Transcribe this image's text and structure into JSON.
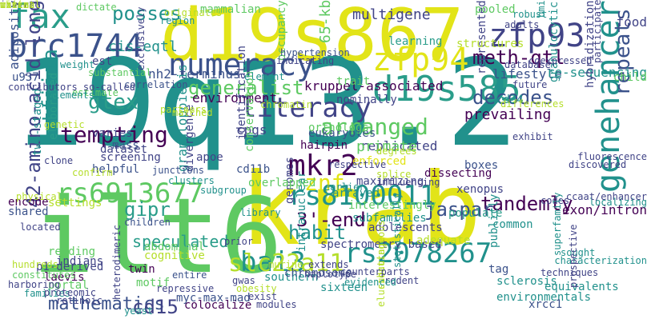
{
  "palette": {
    "yellow": "#e2e418",
    "lime": "#b5de2b",
    "green": "#5ec962",
    "teal": "#21918c",
    "seagreen": "#2a9d8a",
    "blue": "#3b528b",
    "indigo": "#414487",
    "purple": "#440154",
    "aqua": "#35b779"
  },
  "words": [
    {
      "text": "19q13.2",
      "color": "teal",
      "vertical": false
    },
    {
      "text": "krab",
      "color": "yellow",
      "vertical": false
    },
    {
      "text": "ilt6",
      "color": "green",
      "vertical": false
    },
    {
      "text": "d19s867",
      "color": "yellow",
      "vertical": false
    },
    {
      "text": "brc1744",
      "color": "blue",
      "vertical": false
    },
    {
      "text": "fax",
      "color": "seagreen",
      "vertical": false
    },
    {
      "text": "zfp93",
      "color": "indigo",
      "vertical": false
    },
    {
      "text": "posses",
      "color": "teal",
      "vertical": false
    },
    {
      "text": "numeracy",
      "color": "blue",
      "vertical": false
    },
    {
      "text": "d19s585",
      "color": "seagreen",
      "vertical": false
    },
    {
      "text": "zfp94",
      "color": "yellow",
      "vertical": false
    },
    {
      "text": "literacy",
      "color": "indigo",
      "vertical": false
    },
    {
      "text": "mkr2",
      "color": "purple",
      "vertical": false
    },
    {
      "text": "rs6913677",
      "color": "green",
      "vertical": false
    },
    {
      "text": "rs8100011",
      "color": "teal",
      "vertical": false
    },
    {
      "text": "genehancer",
      "color": "teal",
      "vertical": true
    },
    {
      "text": "tempting",
      "color": "purple",
      "vertical": false
    },
    {
      "text": "tandemly",
      "color": "purple",
      "vertical": false
    },
    {
      "text": "jaspar",
      "color": "blue",
      "vertical": false
    },
    {
      "text": "repeats",
      "color": "blue",
      "vertical": true
    },
    {
      "text": "bai3",
      "color": "teal",
      "vertical": false
    },
    {
      "text": "rs2078267",
      "color": "teal",
      "vertical": false
    },
    {
      "text": "slc22a11",
      "color": "lime",
      "vertical": false
    },
    {
      "text": "habit",
      "color": "teal",
      "vertical": false
    },
    {
      "text": "3'-end",
      "color": "purple",
      "vertical": false
    },
    {
      "text": "mathematics",
      "color": "blue",
      "vertical": false
    },
    {
      "text": "cd15",
      "color": "indigo",
      "vertical": false
    },
    {
      "text": "gipr",
      "color": "seagreen",
      "vertical": false
    },
    {
      "text": "speculated",
      "color": "seagreen",
      "vertical": false
    },
    {
      "text": "42-amino-acid-long",
      "color": "indigo",
      "vertical": true
    },
    {
      "text": "gtex",
      "color": "seagreen",
      "vertical": false
    },
    {
      "text": "tfiiia",
      "color": "teal",
      "vertical": true
    },
    {
      "text": "generalist",
      "color": "green",
      "vertical": false
    },
    {
      "text": "decodes",
      "color": "blue",
      "vertical": false
    },
    {
      "text": "arranged",
      "color": "green",
      "vertical": false
    },
    {
      "text": "meth-qtl",
      "color": "purple",
      "vertical": false
    },
    {
      "text": "cis-eqtl",
      "color": "teal",
      "vertical": false
    },
    {
      "text": "nh2-terminus",
      "color": "blue",
      "vertical": false
    },
    {
      "text": "kruppel-associated",
      "color": "purple",
      "vertical": false
    },
    {
      "text": "lifestyle",
      "color": "blue",
      "vertical": false
    },
    {
      "text": "re-sequencing",
      "color": "teal",
      "vertical": false
    },
    {
      "text": "multigene",
      "color": "indigo",
      "vertical": false
    },
    {
      "text": "65-kb",
      "color": "green",
      "vertical": true
    },
    {
      "text": "environment",
      "color": "purple",
      "vertical": false
    },
    {
      "text": "prevailing",
      "color": "purple",
      "vertical": false
    },
    {
      "text": "replicated",
      "color": "indigo",
      "vertical": false
    },
    {
      "text": "znf",
      "color": "yellow",
      "vertical": false
    },
    {
      "text": "primate",
      "color": "green",
      "vertical": false
    },
    {
      "text": "cpgs",
      "color": "indigo",
      "vertical": false
    },
    {
      "text": "eukaryotes",
      "color": "blue",
      "vertical": false
    },
    {
      "text": "orthologs",
      "color": "green",
      "vertical": false
    },
    {
      "text": "dissecting",
      "color": "purple",
      "vertical": false
    },
    {
      "text": "helpful",
      "color": "blue",
      "vertical": false
    },
    {
      "text": "mass",
      "color": "blue",
      "vertical": false
    },
    {
      "text": "dataset",
      "color": "indigo",
      "vertical": false
    },
    {
      "text": "screening",
      "color": "indigo",
      "vertical": false
    },
    {
      "text": "elaborated",
      "color": "seagreen",
      "vertical": true
    },
    {
      "text": "two-staged",
      "color": "teal",
      "vertical": true
    },
    {
      "text": "adiposity",
      "color": "blue",
      "vertical": true
    },
    {
      "text": "u937",
      "color": "blue",
      "vertical": false
    },
    {
      "text": "est",
      "color": "indigo",
      "vertical": false
    },
    {
      "text": "varies",
      "color": "indigo",
      "vertical": false
    },
    {
      "text": "settings",
      "color": "lime",
      "vertical": false
    },
    {
      "text": "encode",
      "color": "purple",
      "vertical": false
    },
    {
      "text": "shared",
      "color": "blue",
      "vertical": false
    },
    {
      "text": "reading",
      "color": "green",
      "vertical": false
    },
    {
      "text": "indians",
      "color": "indigo",
      "vertical": false
    },
    {
      "text": "laevis",
      "color": "purple",
      "vertical": false
    },
    {
      "text": "portal",
      "color": "green",
      "vertical": false
    },
    {
      "text": "p1-derived",
      "color": "indigo",
      "vertical": false
    },
    {
      "text": "twin",
      "color": "purple",
      "vertical": false
    },
    {
      "text": "abdominal",
      "color": "green",
      "vertical": false
    },
    {
      "text": "cognitive",
      "color": "lime",
      "vertical": false
    },
    {
      "text": "motif",
      "color": "green",
      "vertical": false
    },
    {
      "text": "granulopoiesis",
      "color": "teal",
      "vertical": true
    },
    {
      "text": "myc-max-mad",
      "color": "blue",
      "vertical": false
    },
    {
      "text": "colocalize",
      "color": "purple",
      "vertical": false
    },
    {
      "text": "genomes",
      "color": "indigo",
      "vertical": true
    },
    {
      "text": "intranuclear",
      "color": "teal",
      "vertical": true
    },
    {
      "text": "southern",
      "color": "teal",
      "vertical": false
    },
    {
      "text": "chromosome",
      "color": "blue",
      "vertical": false
    },
    {
      "text": "sixteen",
      "color": "teal",
      "vertical": false
    },
    {
      "text": "spectrometry-based",
      "color": "indigo",
      "vertical": false
    },
    {
      "text": "subfamilies",
      "color": "teal",
      "vertical": false
    },
    {
      "text": "interestingly",
      "color": "green",
      "vertical": false
    },
    {
      "text": "adolescents",
      "color": "indigo",
      "vertical": false
    },
    {
      "text": "adequate",
      "color": "lime",
      "vertical": false
    },
    {
      "text": "populate",
      "color": "seagreen",
      "vertical": false
    },
    {
      "text": "publicly",
      "color": "teal",
      "vertical": true
    },
    {
      "text": "tag",
      "color": "blue",
      "vertical": false
    },
    {
      "text": "common",
      "color": "teal",
      "vertical": false
    },
    {
      "text": "environmentals",
      "color": "teal",
      "vertical": false
    },
    {
      "text": "equivalents",
      "color": "teal",
      "vertical": false
    },
    {
      "text": "xrcc1",
      "color": "blue",
      "vertical": false
    },
    {
      "text": "sclerosis",
      "color": "teal",
      "vertical": false
    },
    {
      "text": "exon/intron",
      "color": "purple",
      "vertical": false
    },
    {
      "text": "cd34",
      "color": "teal",
      "vertical": false
    },
    {
      "text": "granulocytic",
      "color": "teal",
      "vertical": true
    },
    {
      "text": "food",
      "color": "indigo",
      "vertical": false
    },
    {
      "text": "child",
      "color": "green",
      "vertical": false
    },
    {
      "text": "hybridization",
      "color": "indigo",
      "vertical": true
    },
    {
      "text": "represented",
      "color": "indigo",
      "vertical": true
    },
    {
      "text": "pooled",
      "color": "green",
      "vertical": false
    },
    {
      "text": "structures",
      "color": "lime",
      "vertical": false
    },
    {
      "text": "nominally",
      "color": "indigo",
      "vertical": false
    },
    {
      "text": "trait",
      "color": "green",
      "vertical": false
    },
    {
      "text": "learning",
      "color": "seagreen",
      "vertical": false
    },
    {
      "text": "mammalian",
      "color": "green",
      "vertical": false
    },
    {
      "text": "occupancy",
      "color": "green",
      "vertical": true
    },
    {
      "text": "divergence",
      "color": "indigo",
      "vertical": true
    },
    {
      "text": "apoe",
      "color": "indigo",
      "vertical": false
    },
    {
      "text": "identification",
      "color": "indigo",
      "vertical": true
    },
    {
      "text": "conservation",
      "color": "green",
      "vertical": true
    },
    {
      "text": "cd11b",
      "color": "blue",
      "vertical": false
    },
    {
      "text": "hairpin",
      "color": "purple",
      "vertical": false
    },
    {
      "text": "overlapped",
      "color": "green",
      "vertical": false
    },
    {
      "text": "arrayed",
      "color": "teal",
      "vertical": false
    },
    {
      "text": "maximizing",
      "color": "indigo",
      "vertical": false
    },
    {
      "text": "enforced",
      "color": "yellow",
      "vertical": false
    },
    {
      "text": "boxes",
      "color": "blue",
      "vertical": false
    },
    {
      "text": "xenopus",
      "color": "indigo",
      "vertical": false
    },
    {
      "text": "dictate",
      "color": "green",
      "vertical": false
    },
    {
      "text": "estimate",
      "color": "green",
      "vertical": false
    },
    {
      "text": "contributors so-called",
      "color": "indigo",
      "vertical": false
    },
    {
      "text": "elements",
      "color": "teal",
      "vertical": false
    },
    {
      "text": "clone",
      "color": "indigo",
      "vertical": false
    },
    {
      "text": "confirm",
      "color": "lime",
      "vertical": false
    },
    {
      "text": "junctions",
      "color": "blue",
      "vertical": false
    },
    {
      "text": "clusters",
      "color": "teal",
      "vertical": false
    },
    {
      "text": "children",
      "color": "blue",
      "vertical": false
    },
    {
      "text": "harboring",
      "color": "indigo",
      "vertical": false
    },
    {
      "text": "families",
      "color": "teal",
      "vertical": false
    },
    {
      "text": "proteomic",
      "color": "indigo",
      "vertical": false
    },
    {
      "text": "retinoic",
      "color": "indigo",
      "vertical": false
    },
    {
      "text": "hundreds",
      "color": "lime",
      "vertical": false
    },
    {
      "text": "constitutes",
      "color": "green",
      "vertical": false
    },
    {
      "text": "located",
      "color": "indigo",
      "vertical": false
    },
    {
      "text": "physical",
      "color": "lime",
      "vertical": false
    },
    {
      "text": "entire",
      "color": "blue",
      "vertical": false
    },
    {
      "text": "repressive",
      "color": "indigo",
      "vertical": false
    },
    {
      "text": "heterodimeric",
      "color": "indigo",
      "vertical": true
    },
    {
      "text": "yeast",
      "color": "teal",
      "vertical": false
    },
    {
      "text": "subgroup",
      "color": "teal",
      "vertical": false
    },
    {
      "text": "chromatin",
      "color": "lime",
      "vertical": false
    },
    {
      "text": "matched",
      "color": "lime",
      "vertical": false
    },
    {
      "text": "region",
      "color": "teal",
      "vertical": false
    },
    {
      "text": "weight",
      "color": "teal",
      "vertical": false
    },
    {
      "text": "genetic",
      "color": "lime",
      "vertical": false
    },
    {
      "text": "substantial",
      "color": "green",
      "vertical": false
    },
    {
      "text": "correlation",
      "color": "blue",
      "vertical": false
    },
    {
      "text": "exclusively",
      "color": "indigo",
      "vertical": true
    },
    {
      "text": "element",
      "color": "teal",
      "vertical": false
    },
    {
      "text": "hypertension",
      "color": "blue",
      "vertical": false
    },
    {
      "text": "indicating",
      "color": "indigo",
      "vertical": false
    },
    {
      "text": "respective",
      "color": "indigo",
      "vertical": false
    },
    {
      "text": "degrees",
      "color": "lime",
      "vertical": false
    },
    {
      "text": "splice",
      "color": "lime",
      "vertical": false
    },
    {
      "text": "influencing",
      "color": "indigo",
      "vertical": false
    },
    {
      "text": "earlier",
      "color": "teal",
      "vertical": false
    },
    {
      "text": "discovered",
      "color": "indigo",
      "vertical": false
    },
    {
      "text": "fluorescence",
      "color": "indigo",
      "vertical": false
    },
    {
      "text": "localizing",
      "color": "teal",
      "vertical": false
    },
    {
      "text": "codes",
      "color": "indigo",
      "vertical": false
    },
    {
      "text": "superfamily",
      "color": "teal",
      "vertical": true
    },
    {
      "text": "techniques",
      "color": "indigo",
      "vertical": false
    },
    {
      "text": "characterization",
      "color": "teal",
      "vertical": false
    },
    {
      "text": "sought",
      "color": "teal",
      "vertical": false
    },
    {
      "text": "ccaat/enhancer",
      "color": "indigo",
      "vertical": false
    },
    {
      "text": "prospective",
      "color": "indigo",
      "vertical": true
    },
    {
      "text": "statistically",
      "color": "teal",
      "vertical": true
    },
    {
      "text": "rodent",
      "color": "indigo",
      "vertical": false
    },
    {
      "text": "elucidating",
      "color": "lime",
      "vertical": true
    },
    {
      "text": "subcutaneous",
      "color": "lime",
      "vertical": true
    },
    {
      "text": "evidenced",
      "color": "teal",
      "vertical": false
    },
    {
      "text": "counterparts",
      "color": "indigo",
      "vertical": false
    },
    {
      "text": "extends",
      "color": "indigo",
      "vertical": false
    },
    {
      "text": "haplotype",
      "color": "indigo",
      "vertical": false
    },
    {
      "text": "murine",
      "color": "lime",
      "vertical": false
    },
    {
      "text": "gwas",
      "color": "indigo",
      "vertical": false
    },
    {
      "text": "obesity",
      "color": "lime",
      "vertical": false
    },
    {
      "text": "exist",
      "color": "indigo",
      "vertical": false
    },
    {
      "text": "modules",
      "color": "indigo",
      "vertical": false
    },
    {
      "text": "library",
      "color": "teal",
      "vertical": false
    },
    {
      "text": "prior",
      "color": "indigo",
      "vertical": false
    },
    {
      "text": "adults",
      "color": "indigo",
      "vertical": false
    },
    {
      "text": "robust",
      "color": "teal",
      "vertical": false
    },
    {
      "text": "bmi",
      "color": "teal",
      "vertical": true
    },
    {
      "text": "participate",
      "color": "indigo",
      "vertical": true
    },
    {
      "text": "database",
      "color": "indigo",
      "vertical": false
    },
    {
      "text": "coexpressed",
      "color": "indigo",
      "vertical": false
    },
    {
      "text": "future",
      "color": "indigo",
      "vertical": false
    },
    {
      "text": "exhibit",
      "color": "indigo",
      "vertical": false
    },
    {
      "text": "differences",
      "color": "lime",
      "vertical": false
    },
    {
      "text": "partners",
      "color": "lime",
      "vertical": false
    },
    {
      "text": "originates",
      "color": "lime",
      "vertical": false
    },
    {
      "text": "inverse",
      "color": "indigo",
      "vertical": false
    },
    {
      "text": "extent",
      "color": "lime",
      "vertical": false
    },
    {
      "text": "minimal",
      "color": "lime",
      "vertical": false
    },
    {
      "text": "white",
      "color": "lime",
      "vertical": false
    }
  ]
}
